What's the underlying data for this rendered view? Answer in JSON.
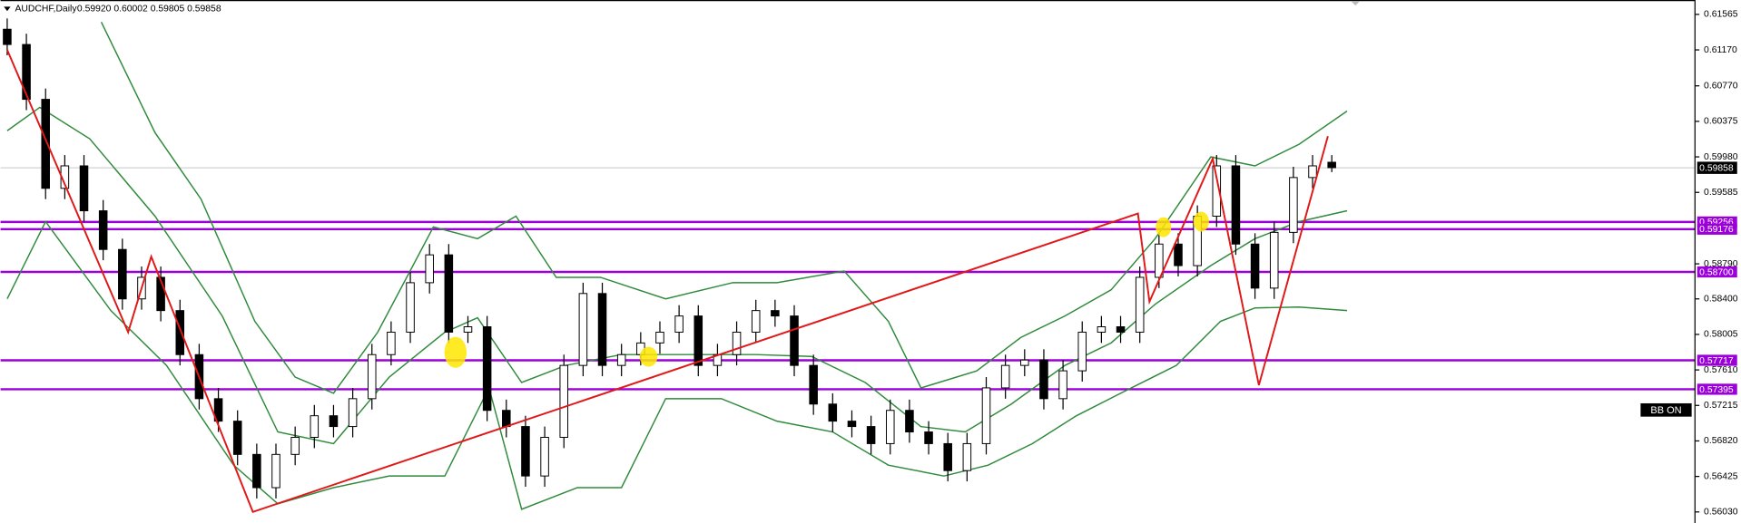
{
  "chart_data": {
    "type": "candlestick",
    "title": "AUDCHF,Daily",
    "subtitle": "0.59920 0.60002 0.59805 0.59858",
    "badge": "BB ON",
    "ylim": [
      0.55907,
      0.61725
    ],
    "yticks": [
      0.61565,
      {
        "value": 0.6117,
        "label": "0.61170"
      },
      {
        "value": 0.6077,
        "label": "0.60770"
      },
      0.60375,
      {
        "value": 0.5998,
        "label": "0.59980"
      },
      0.59585,
      {
        "value": 0.5879,
        "label": "0.58790"
      },
      {
        "value": 0.584,
        "label": "0.58400"
      },
      0.58005,
      {
        "value": 0.5761,
        "label": "0.57610"
      },
      0.57215,
      {
        "value": 0.5682,
        "label": "0.56820"
      },
      0.56425,
      {
        "value": 0.5603,
        "label": "0.56030"
      }
    ],
    "current_price": 0.59858,
    "levels": {
      "color": "#9b00d9",
      "values": [
        0.59256,
        0.59176,
        {
          "value": 0.587,
          "label": "0.58700"
        },
        0.57717,
        0.57395
      ]
    },
    "candles": {
      "up_color": "#ffffff",
      "down_color": "#000000",
      "open": [
        0.614,
        0.6123,
        0.6062,
        0.5963,
        0.5988,
        0.5938,
        0.5895,
        0.584,
        0.5864,
        0.5827,
        0.5778,
        0.5729,
        0.5704,
        0.5667,
        0.563,
        0.5667,
        0.5686,
        0.571,
        0.5698,
        0.5729,
        0.5778,
        0.5803,
        0.5858,
        0.5889,
        0.5803,
        0.5809,
        0.5716,
        0.5698,
        0.5643,
        0.5686,
        0.5766,
        0.5846,
        0.5766,
        0.5778,
        0.5791,
        0.5803,
        0.5821,
        0.5766,
        0.5778,
        0.5803,
        0.5827,
        0.5821,
        0.5766,
        0.5723,
        0.5704,
        0.5698,
        0.5679,
        0.5716,
        0.5692,
        0.5679,
        0.5649,
        0.5679,
        0.5741,
        0.5766,
        0.5772,
        0.5729,
        0.576,
        0.5803,
        0.5809,
        0.5803,
        0.5864,
        0.5901,
        0.5877,
        0.5932,
        0.5988,
        0.5901,
        0.5852,
        0.5914,
        0.5975,
        0.5992
      ],
      "high": [
        0.6152,
        0.6135,
        0.6074,
        0.6,
        0.6,
        0.595,
        0.5907,
        0.5876,
        0.5876,
        0.5839,
        0.579,
        0.5741,
        0.5716,
        0.5679,
        0.5679,
        0.5698,
        0.5722,
        0.5722,
        0.5741,
        0.579,
        0.5815,
        0.587,
        0.5901,
        0.5901,
        0.5821,
        0.5821,
        0.5728,
        0.571,
        0.5698,
        0.5778,
        0.5858,
        0.5858,
        0.579,
        0.5803,
        0.5815,
        0.5833,
        0.5833,
        0.579,
        0.5815,
        0.5839,
        0.5839,
        0.5833,
        0.5778,
        0.5735,
        0.5716,
        0.571,
        0.5728,
        0.5728,
        0.5704,
        0.5691,
        0.5691,
        0.5753,
        0.5778,
        0.5784,
        0.5784,
        0.5772,
        0.5815,
        0.5821,
        0.5821,
        0.5876,
        0.5913,
        0.5913,
        0.5944,
        0.6,
        0.6,
        0.5913,
        0.5926,
        0.5987,
        0.6,
        0.6
      ],
      "low": [
        0.6111,
        0.605,
        0.5951,
        0.5951,
        0.5926,
        0.5883,
        0.5828,
        0.5828,
        0.5815,
        0.5766,
        0.5717,
        0.5692,
        0.5655,
        0.5618,
        0.5618,
        0.5655,
        0.5674,
        0.5686,
        0.5686,
        0.5717,
        0.5766,
        0.5791,
        0.5846,
        0.5791,
        0.5791,
        0.5704,
        0.5686,
        0.5631,
        0.5631,
        0.5674,
        0.5754,
        0.5754,
        0.5754,
        0.5766,
        0.5779,
        0.5791,
        0.5754,
        0.5754,
        0.5766,
        0.5791,
        0.5809,
        0.5754,
        0.5711,
        0.5692,
        0.5686,
        0.5667,
        0.5667,
        0.568,
        0.5667,
        0.5637,
        0.5637,
        0.5667,
        0.5729,
        0.5754,
        0.5717,
        0.5717,
        0.5748,
        0.5791,
        0.5791,
        0.5791,
        0.5852,
        0.5865,
        0.5865,
        0.592,
        0.5889,
        0.584,
        0.584,
        0.5902,
        0.5963,
        0.5981
      ],
      "close": [
        0.6123,
        0.6062,
        0.5963,
        0.5988,
        0.5938,
        0.5895,
        0.584,
        0.5864,
        0.5827,
        0.5778,
        0.5729,
        0.5704,
        0.5667,
        0.563,
        0.5667,
        0.5686,
        0.571,
        0.5698,
        0.5729,
        0.5778,
        0.5803,
        0.5858,
        0.5889,
        0.5803,
        0.5809,
        0.5716,
        0.5698,
        0.5643,
        0.5686,
        0.5766,
        0.5846,
        0.5766,
        0.5778,
        0.5791,
        0.5803,
        0.5821,
        0.5766,
        0.5778,
        0.5803,
        0.5827,
        0.5821,
        0.5766,
        0.5723,
        0.5704,
        0.5698,
        0.5679,
        0.5716,
        0.5692,
        0.5679,
        0.5649,
        0.5679,
        0.5741,
        0.5766,
        0.5772,
        0.5729,
        0.576,
        0.5803,
        0.5809,
        0.5803,
        0.5864,
        0.5901,
        0.5877,
        0.5932,
        0.5988,
        0.5901,
        0.5852,
        0.5914,
        0.5975,
        0.5988,
        0.5986
      ]
    },
    "bands": {
      "color": "#2f8a3c",
      "lines": [
        {
          "x": [
            4.9,
            7.7,
            10.1,
            12.9,
            15.0,
            17.0,
            19.3,
            22.2,
            24.5,
            26.5,
            28.6,
            30.9,
            34.3,
            37.8,
            40.1,
            43.6,
            45.9,
            47.6,
            50.5,
            52.8,
            55.1,
            57.5,
            59.8,
            62.7,
            65.0,
            67.3,
            69.8
          ],
          "values": [
            0.6148,
            0.6025,
            0.5951,
            0.5815,
            0.5753,
            0.5735,
            0.5803,
            0.592,
            0.5907,
            0.5932,
            0.5864,
            0.5864,
            0.584,
            0.5858,
            0.5858,
            0.5871,
            0.5815,
            0.5741,
            0.576,
            0.5797,
            0.5821,
            0.585,
            0.5907,
            0.5998,
            0.5988,
            0.6012,
            0.6049
          ]
        },
        {
          "x": [
            0,
            1.7,
            4.3,
            7.7,
            11.2,
            14.1,
            17.0,
            19.9,
            22.8,
            24.5,
            26.8,
            29.1,
            32.0,
            35.5,
            39.0,
            41.9,
            44.7,
            47.6,
            49.9,
            52.3,
            55.1,
            57.5,
            59.8,
            62.7,
            65.0,
            67.3,
            69.8
          ],
          "values": [
            0.6027,
            0.6053,
            0.6018,
            0.5932,
            0.5821,
            0.5692,
            0.5679,
            0.5753,
            0.5803,
            0.5819,
            0.5747,
            0.5766,
            0.5778,
            0.5778,
            0.5778,
            0.5776,
            0.5747,
            0.5698,
            0.5692,
            0.5723,
            0.5766,
            0.5791,
            0.5834,
            0.5877,
            0.5907,
            0.5926,
            0.5938
          ]
        },
        {
          "x": [
            0,
            2.0,
            5.4,
            8.3,
            11.8,
            14.1,
            17.0,
            19.9,
            22.8,
            25.1,
            26.8,
            29.7,
            32.0,
            34.3,
            37.2,
            40.1,
            43.0,
            45.9,
            48.8,
            51.1,
            53.4,
            55.7,
            58.0,
            60.9,
            63.2,
            65.0,
            67.3,
            69.8
          ],
          "values": [
            0.584,
            0.5926,
            0.5827,
            0.5766,
            0.5655,
            0.5612,
            0.563,
            0.5643,
            0.5643,
            0.5741,
            0.5606,
            0.563,
            0.563,
            0.5729,
            0.5729,
            0.5704,
            0.5692,
            0.5655,
            0.5643,
            0.5655,
            0.5679,
            0.571,
            0.5735,
            0.5766,
            0.5815,
            0.583,
            0.5831,
            0.5827
          ]
        }
      ]
    },
    "zigzag": {
      "color": "#e01818",
      "x": [
        0,
        6.3,
        7.5,
        12.8,
        58.9,
        59.5,
        62.8,
        65.2,
        68.8
      ],
      "values": [
        0.6117,
        0.5803,
        0.5887,
        0.5603,
        0.5935,
        0.5837,
        0.5996,
        0.5744,
        0.6021
      ]
    }
  }
}
